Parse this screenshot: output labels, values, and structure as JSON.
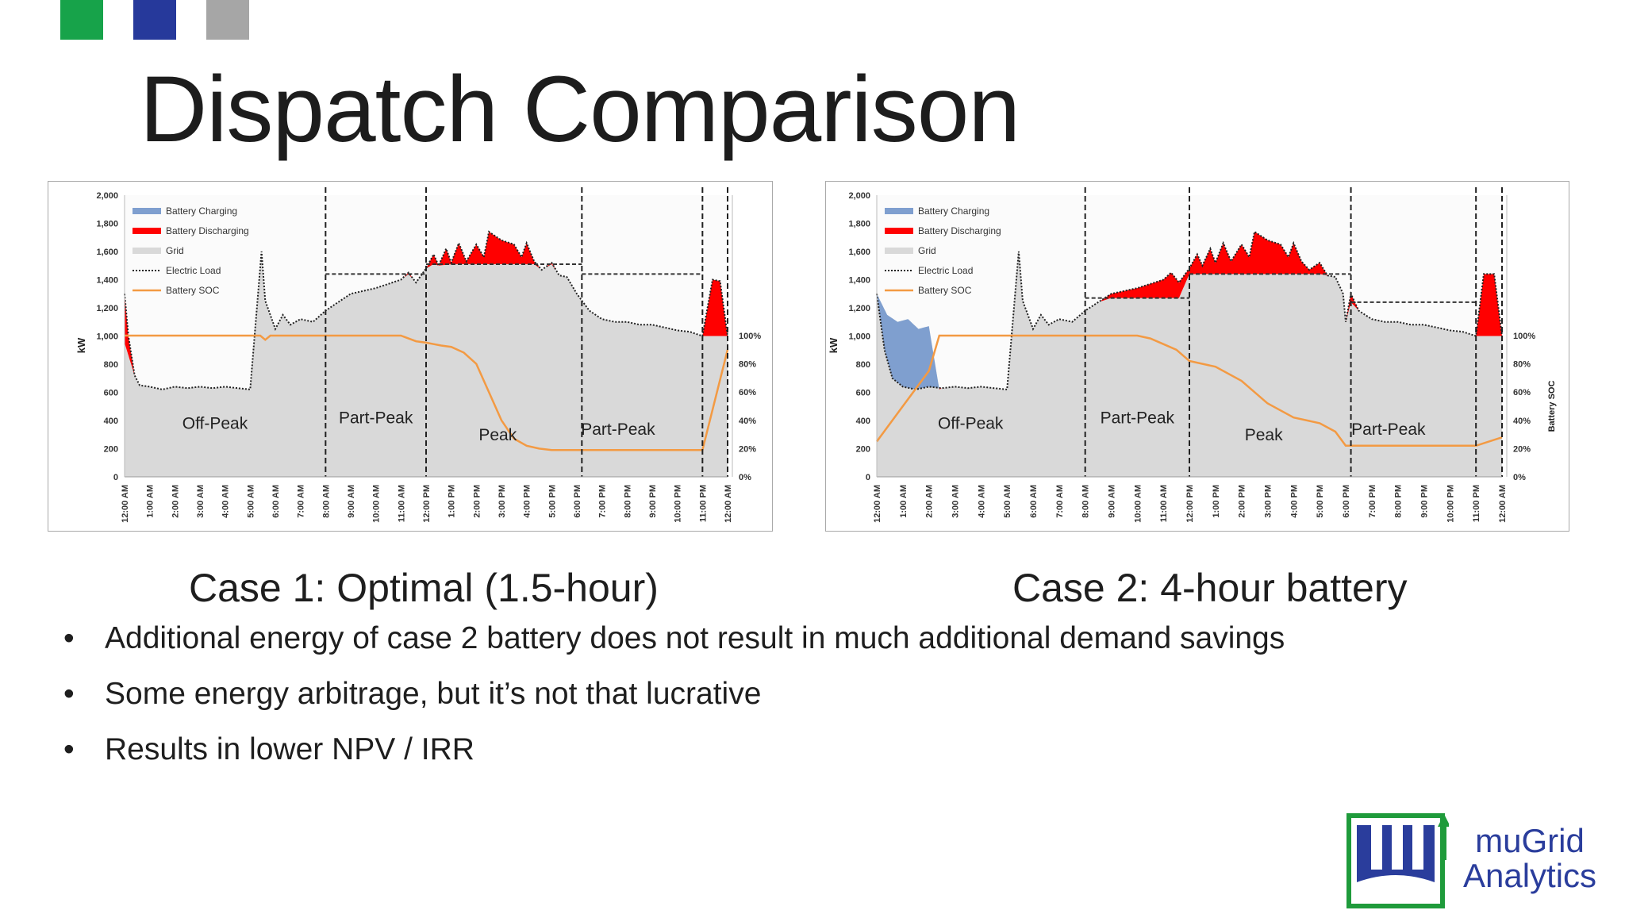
{
  "header": {
    "title": "Dispatch Comparison",
    "squares": [
      "#17a34a",
      "#26399b",
      "#a6a6a6"
    ]
  },
  "captions": [
    "Case 1: Optimal (1.5-hour)",
    "Case 2: 4-hour battery"
  ],
  "bullets": [
    "Additional energy of case 2 battery does not result in much additional demand savings",
    "Some energy arbitrage, but it’s not that lucrative",
    "Results in lower NPV / IRR"
  ],
  "bullet_glyph": "•",
  "logo": {
    "line1": "muGrid",
    "line2": "Analytics",
    "color": "#2a3d9c",
    "border_color": "#1f9b3b"
  },
  "colors": {
    "charging": "#7f9fcf",
    "discharging": "#ff0000",
    "grid": "#d9d9d9",
    "soc": "#f39a43"
  },
  "chart_data": [
    {
      "type": "area",
      "ylabel": "kW",
      "y2label": "Battery SOC",
      "ylim": [
        0,
        2000
      ],
      "y2lim": [
        0,
        100
      ],
      "yticks": [
        "2,000",
        "1,800",
        "1,600",
        "1,400",
        "1,200",
        "1,000",
        "800",
        "600",
        "400",
        "200",
        "0"
      ],
      "y2ticks": [
        "100%",
        "80%",
        "60%",
        "40%",
        "20%",
        "0%"
      ],
      "xticks": [
        "12:00 AM",
        "1:00 AM",
        "2:00 AM",
        "3:00 AM",
        "4:00 AM",
        "5:00 AM",
        "6:00 AM",
        "7:00 AM",
        "8:00 AM",
        "9:00 AM",
        "10:00 AM",
        "11:00 AM",
        "12:00 PM",
        "1:00 PM",
        "2:00 PM",
        "3:00 PM",
        "4:00 PM",
        "5:00 PM",
        "6:00 PM",
        "7:00 PM",
        "8:00 PM",
        "9:00 PM",
        "10:00 PM",
        "11:00 PM",
        "12:00 AM"
      ],
      "legend": [
        "Battery Charging",
        "Battery Discharging",
        "Grid",
        "Electric Load",
        "Battery SOC"
      ],
      "legend_position": "top-left",
      "periods": [
        {
          "name": "Off-Peak",
          "start": 0,
          "end": 8,
          "limit": null
        },
        {
          "name": "Part-Peak",
          "start": 8,
          "end": 12,
          "limit": 1440
        },
        {
          "name": "Peak",
          "start": 12,
          "end": 18.2,
          "limit": 1510
        },
        {
          "name": "Part-Peak",
          "start": 18.2,
          "end": 23,
          "limit": 1440
        },
        {
          "name": "",
          "start": 23,
          "end": 24,
          "limit": null
        }
      ],
      "load": [
        [
          0,
          1300
        ],
        [
          0.15,
          1000
        ],
        [
          0.4,
          720
        ],
        [
          0.6,
          650
        ],
        [
          1,
          640
        ],
        [
          1.5,
          620
        ],
        [
          2,
          640
        ],
        [
          2.5,
          630
        ],
        [
          3,
          640
        ],
        [
          3.5,
          630
        ],
        [
          4,
          640
        ],
        [
          4.5,
          630
        ],
        [
          5,
          620
        ],
        [
          5.45,
          1600
        ],
        [
          5.6,
          1250
        ],
        [
          6,
          1050
        ],
        [
          6.3,
          1150
        ],
        [
          6.6,
          1080
        ],
        [
          7,
          1120
        ],
        [
          7.5,
          1100
        ],
        [
          8,
          1180
        ],
        [
          8.5,
          1240
        ],
        [
          9,
          1300
        ],
        [
          9.5,
          1320
        ],
        [
          10,
          1340
        ],
        [
          10.5,
          1370
        ],
        [
          11,
          1400
        ],
        [
          11.3,
          1450
        ],
        [
          11.6,
          1380
        ],
        [
          12,
          1480
        ],
        [
          12.3,
          1580
        ],
        [
          12.5,
          1500
        ],
        [
          12.8,
          1620
        ],
        [
          13,
          1520
        ],
        [
          13.3,
          1660
        ],
        [
          13.6,
          1530
        ],
        [
          14,
          1650
        ],
        [
          14.3,
          1560
        ],
        [
          14.5,
          1740
        ],
        [
          15,
          1680
        ],
        [
          15.5,
          1650
        ],
        [
          15.8,
          1560
        ],
        [
          16,
          1660
        ],
        [
          16.3,
          1530
        ],
        [
          16.6,
          1470
        ],
        [
          17,
          1520
        ],
        [
          17.3,
          1430
        ],
        [
          17.6,
          1420
        ],
        [
          18,
          1300
        ],
        [
          18.5,
          1180
        ],
        [
          19,
          1120
        ],
        [
          19.5,
          1100
        ],
        [
          20,
          1100
        ],
        [
          20.5,
          1080
        ],
        [
          21,
          1080
        ],
        [
          21.5,
          1060
        ],
        [
          22,
          1040
        ],
        [
          22.5,
          1030
        ],
        [
          23,
          1000
        ],
        [
          23.4,
          1400
        ],
        [
          23.7,
          1390
        ],
        [
          24,
          1000
        ]
      ],
      "grid": [
        [
          0,
          950
        ],
        [
          0.4,
          720
        ],
        [
          0.6,
          650
        ],
        [
          1,
          640
        ],
        [
          1.5,
          620
        ],
        [
          2,
          640
        ],
        [
          2.5,
          630
        ],
        [
          3,
          640
        ],
        [
          3.5,
          630
        ],
        [
          4,
          640
        ],
        [
          4.5,
          630
        ],
        [
          5,
          620
        ],
        [
          5.45,
          1600
        ],
        [
          5.6,
          1250
        ],
        [
          6,
          1050
        ],
        [
          6.3,
          1150
        ],
        [
          6.6,
          1080
        ],
        [
          7,
          1120
        ],
        [
          7.5,
          1100
        ],
        [
          8,
          1180
        ],
        [
          8.5,
          1240
        ],
        [
          9,
          1300
        ],
        [
          9.5,
          1320
        ],
        [
          10,
          1340
        ],
        [
          10.5,
          1370
        ],
        [
          11,
          1400
        ],
        [
          11.3,
          1440
        ],
        [
          11.6,
          1380
        ],
        [
          12,
          1480
        ],
        [
          12.3,
          1510
        ],
        [
          12.5,
          1500
        ],
        [
          13,
          1510
        ],
        [
          14,
          1510
        ],
        [
          15,
          1510
        ],
        [
          15.5,
          1510
        ],
        [
          16,
          1510
        ],
        [
          16.3,
          1510
        ],
        [
          16.6,
          1470
        ],
        [
          17,
          1510
        ],
        [
          17.3,
          1430
        ],
        [
          17.6,
          1420
        ],
        [
          18,
          1300
        ],
        [
          18.5,
          1180
        ],
        [
          19,
          1120
        ],
        [
          19.5,
          1100
        ],
        [
          20,
          1100
        ],
        [
          20.5,
          1080
        ],
        [
          21,
          1080
        ],
        [
          21.5,
          1060
        ],
        [
          22,
          1040
        ],
        [
          22.5,
          1030
        ],
        [
          23,
          1000
        ],
        [
          24,
          1000
        ]
      ],
      "soc": [
        [
          0,
          100
        ],
        [
          5.4,
          100
        ],
        [
          5.6,
          97
        ],
        [
          5.8,
          100
        ],
        [
          11,
          100
        ],
        [
          11.3,
          98
        ],
        [
          11.6,
          96
        ],
        [
          12,
          95
        ],
        [
          12.3,
          94
        ],
        [
          12.6,
          93
        ],
        [
          13,
          92
        ],
        [
          13.5,
          88
        ],
        [
          14,
          80
        ],
        [
          14.5,
          60
        ],
        [
          15,
          40
        ],
        [
          15.5,
          27
        ],
        [
          16,
          22
        ],
        [
          16.5,
          20
        ],
        [
          17,
          19
        ],
        [
          18,
          19
        ],
        [
          19,
          19
        ],
        [
          20,
          19
        ],
        [
          21,
          19
        ],
        [
          22,
          19
        ],
        [
          23,
          19
        ],
        [
          24,
          90
        ]
      ]
    },
    {
      "type": "area",
      "ylabel": "kW",
      "y2label": "Battery SOC",
      "ylim": [
        0,
        2000
      ],
      "y2lim": [
        0,
        100
      ],
      "yticks": [
        "2,000",
        "1,800",
        "1,600",
        "1,400",
        "1,200",
        "1,000",
        "800",
        "600",
        "400",
        "200",
        "0"
      ],
      "y2ticks": [
        "100%",
        "80%",
        "60%",
        "40%",
        "20%",
        "0%"
      ],
      "xticks": [
        "12:00 AM",
        "1:00 AM",
        "2:00 AM",
        "3:00 AM",
        "4:00 AM",
        "5:00 AM",
        "6:00 AM",
        "7:00 AM",
        "8:00 AM",
        "9:00 AM",
        "10:00 AM",
        "11:00 AM",
        "12:00 PM",
        "1:00 PM",
        "2:00 PM",
        "3:00 PM",
        "4:00 PM",
        "5:00 PM",
        "6:00 PM",
        "7:00 PM",
        "8:00 PM",
        "9:00 PM",
        "10:00 PM",
        "11:00 PM",
        "12:00 AM"
      ],
      "legend": [
        "Battery Charging",
        "Battery Discharging",
        "Grid",
        "Electric Load",
        "Battery SOC"
      ],
      "legend_position": "top-left",
      "periods": [
        {
          "name": "Off-Peak",
          "start": 0,
          "end": 8,
          "limit": null
        },
        {
          "name": "Part-Peak",
          "start": 8,
          "end": 12,
          "limit": 1270
        },
        {
          "name": "Peak",
          "start": 12,
          "end": 18.2,
          "limit": 1440
        },
        {
          "name": "Part-Peak",
          "start": 18.2,
          "end": 23,
          "limit": 1240
        },
        {
          "name": "",
          "start": 23,
          "end": 24,
          "limit": null
        }
      ],
      "load": [
        [
          0,
          1300
        ],
        [
          0.3,
          900
        ],
        [
          0.6,
          700
        ],
        [
          1,
          640
        ],
        [
          1.5,
          620
        ],
        [
          2,
          640
        ],
        [
          2.5,
          630
        ],
        [
          3,
          640
        ],
        [
          3.5,
          630
        ],
        [
          4,
          640
        ],
        [
          4.5,
          630
        ],
        [
          5,
          620
        ],
        [
          5.45,
          1600
        ],
        [
          5.6,
          1250
        ],
        [
          6,
          1050
        ],
        [
          6.3,
          1150
        ],
        [
          6.6,
          1080
        ],
        [
          7,
          1120
        ],
        [
          7.5,
          1100
        ],
        [
          8,
          1180
        ],
        [
          8.5,
          1240
        ],
        [
          9,
          1300
        ],
        [
          9.5,
          1320
        ],
        [
          10,
          1340
        ],
        [
          10.5,
          1370
        ],
        [
          11,
          1400
        ],
        [
          11.3,
          1450
        ],
        [
          11.6,
          1380
        ],
        [
          12,
          1480
        ],
        [
          12.3,
          1580
        ],
        [
          12.5,
          1500
        ],
        [
          12.8,
          1620
        ],
        [
          13,
          1520
        ],
        [
          13.3,
          1660
        ],
        [
          13.6,
          1530
        ],
        [
          14,
          1650
        ],
        [
          14.3,
          1560
        ],
        [
          14.5,
          1740
        ],
        [
          15,
          1680
        ],
        [
          15.5,
          1650
        ],
        [
          15.8,
          1560
        ],
        [
          16,
          1660
        ],
        [
          16.3,
          1530
        ],
        [
          16.6,
          1470
        ],
        [
          17,
          1520
        ],
        [
          17.3,
          1430
        ],
        [
          17.6,
          1420
        ],
        [
          17.9,
          1300
        ],
        [
          18,
          1100
        ],
        [
          18.2,
          1300
        ],
        [
          18.5,
          1180
        ],
        [
          19,
          1120
        ],
        [
          19.5,
          1100
        ],
        [
          20,
          1100
        ],
        [
          20.5,
          1080
        ],
        [
          21,
          1080
        ],
        [
          21.5,
          1060
        ],
        [
          22,
          1040
        ],
        [
          22.5,
          1030
        ],
        [
          23,
          1000
        ],
        [
          23.3,
          1440
        ],
        [
          23.7,
          1440
        ],
        [
          24,
          1000
        ]
      ],
      "grid": [
        [
          0,
          1300
        ],
        [
          0.4,
          1150
        ],
        [
          0.8,
          1100
        ],
        [
          1.2,
          1120
        ],
        [
          1.6,
          1050
        ],
        [
          2,
          1070
        ],
        [
          2.4,
          620
        ],
        [
          2.5,
          630
        ],
        [
          3,
          640
        ],
        [
          3.5,
          630
        ],
        [
          4,
          640
        ],
        [
          4.5,
          630
        ],
        [
          5,
          620
        ],
        [
          5.45,
          1600
        ],
        [
          5.6,
          1250
        ],
        [
          6,
          1050
        ],
        [
          6.3,
          1150
        ],
        [
          6.6,
          1080
        ],
        [
          7,
          1120
        ],
        [
          7.5,
          1100
        ],
        [
          8,
          1180
        ],
        [
          8.5,
          1240
        ],
        [
          9,
          1270
        ],
        [
          9.5,
          1270
        ],
        [
          10,
          1270
        ],
        [
          10.5,
          1270
        ],
        [
          11,
          1270
        ],
        [
          11.3,
          1270
        ],
        [
          11.6,
          1270
        ],
        [
          12,
          1440
        ],
        [
          13,
          1440
        ],
        [
          14,
          1440
        ],
        [
          15,
          1440
        ],
        [
          16,
          1440
        ],
        [
          16.3,
          1440
        ],
        [
          16.6,
          1440
        ],
        [
          17,
          1440
        ],
        [
          17.3,
          1430
        ],
        [
          17.6,
          1420
        ],
        [
          17.9,
          1300
        ],
        [
          18,
          1100
        ],
        [
          18.2,
          1240
        ],
        [
          18.5,
          1180
        ],
        [
          19,
          1120
        ],
        [
          19.5,
          1100
        ],
        [
          20,
          1100
        ],
        [
          20.5,
          1080
        ],
        [
          21,
          1080
        ],
        [
          21.5,
          1060
        ],
        [
          22,
          1040
        ],
        [
          22.5,
          1030
        ],
        [
          23,
          1000
        ],
        [
          24,
          1000
        ]
      ],
      "soc": [
        [
          0,
          25
        ],
        [
          1,
          50
        ],
        [
          2,
          75
        ],
        [
          2.4,
          100
        ],
        [
          10,
          100
        ],
        [
          10.5,
          98
        ],
        [
          11,
          94
        ],
        [
          11.5,
          90
        ],
        [
          12,
          82
        ],
        [
          13,
          78
        ],
        [
          14,
          68
        ],
        [
          15,
          52
        ],
        [
          16,
          42
        ],
        [
          17,
          38
        ],
        [
          17.6,
          32
        ],
        [
          18,
          22
        ],
        [
          19,
          22
        ],
        [
          20,
          22
        ],
        [
          21,
          22
        ],
        [
          22,
          22
        ],
        [
          23,
          22
        ],
        [
          24,
          28
        ]
      ]
    }
  ]
}
